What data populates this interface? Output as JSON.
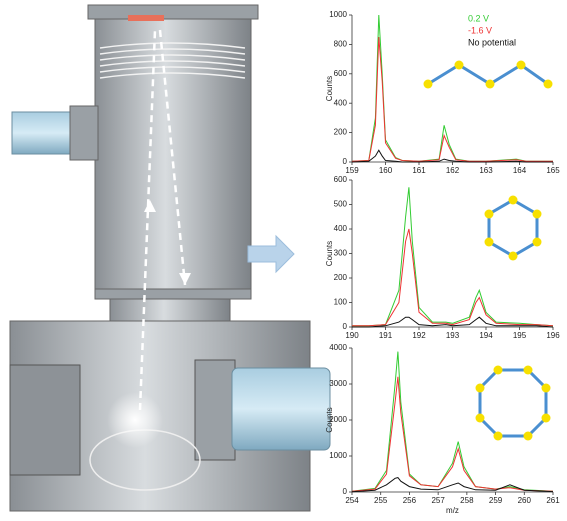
{
  "chart_data": [
    {
      "type": "line",
      "y_label": "Counts",
      "x": [
        159,
        159.5,
        159.7,
        159.8,
        159.9,
        160.0,
        160.3,
        160.5,
        161,
        161.6,
        161.75,
        161.9,
        162.1,
        162.5,
        163,
        163.9,
        164.2,
        165
      ],
      "xlim": [
        159,
        165
      ],
      "xticks": [
        159,
        160,
        161,
        162,
        163,
        164,
        165
      ],
      "ylim": [
        0,
        1000
      ],
      "yticks": [
        0,
        200,
        400,
        600,
        800,
        1000
      ],
      "series": [
        {
          "name": "0.2 V",
          "color": "#33cc33",
          "values": [
            5,
            10,
            300,
            1000,
            600,
            150,
            30,
            10,
            5,
            20,
            250,
            120,
            20,
            5,
            5,
            20,
            5,
            5
          ]
        },
        {
          "name": "-1.6 V",
          "color": "#ee3333",
          "values": [
            5,
            10,
            250,
            850,
            550,
            130,
            25,
            10,
            5,
            15,
            180,
            100,
            15,
            5,
            5,
            15,
            5,
            5
          ]
        },
        {
          "name": "No potential",
          "color": "#111111",
          "values": [
            0,
            5,
            40,
            80,
            40,
            10,
            5,
            0,
            0,
            5,
            20,
            10,
            5,
            0,
            0,
            5,
            0,
            0
          ]
        }
      ]
    },
    {
      "type": "line",
      "y_label": "Counts",
      "x": [
        190,
        190.5,
        191,
        191.4,
        191.6,
        191.7,
        191.8,
        192,
        192.4,
        192.8,
        193,
        193.5,
        193.7,
        193.8,
        194,
        194.3,
        195,
        195.5,
        196
      ],
      "xlim": [
        190,
        196
      ],
      "xticks": [
        190,
        191,
        192,
        193,
        194,
        195,
        196
      ],
      "ylim": [
        0,
        600
      ],
      "yticks": [
        0,
        100,
        200,
        300,
        400,
        500,
        600
      ],
      "series": [
        {
          "color": "#33cc33",
          "values": [
            5,
            5,
            10,
            150,
            450,
            570,
            350,
            80,
            20,
            20,
            15,
            40,
            120,
            150,
            60,
            20,
            15,
            10,
            5
          ]
        },
        {
          "color": "#ee3333",
          "values": [
            5,
            5,
            10,
            100,
            350,
            400,
            300,
            60,
            15,
            15,
            10,
            30,
            100,
            120,
            50,
            15,
            10,
            10,
            5
          ]
        },
        {
          "color": "#111111",
          "values": [
            0,
            0,
            5,
            20,
            40,
            40,
            30,
            10,
            5,
            10,
            5,
            10,
            30,
            40,
            15,
            5,
            5,
            5,
            0
          ]
        }
      ]
    },
    {
      "type": "line",
      "y_label": "Counts",
      "x_label": "m/z",
      "x": [
        254,
        254.8,
        255.2,
        255.5,
        255.6,
        255.7,
        256,
        256.4,
        257,
        257.5,
        257.7,
        257.9,
        258.3,
        259,
        259.5,
        260,
        261
      ],
      "xlim": [
        254,
        261
      ],
      "xticks": [
        254,
        255,
        256,
        257,
        258,
        259,
        260,
        261
      ],
      "ylim": [
        0,
        4000
      ],
      "yticks": [
        0,
        1000,
        2000,
        3000,
        4000
      ],
      "series": [
        {
          "color": "#33cc33",
          "values": [
            20,
            100,
            600,
            3000,
            3900,
            2500,
            500,
            200,
            150,
            800,
            1400,
            700,
            150,
            80,
            150,
            60,
            20
          ]
        },
        {
          "color": "#ee3333",
          "values": [
            20,
            80,
            500,
            2500,
            3200,
            2200,
            450,
            200,
            150,
            700,
            1200,
            600,
            150,
            80,
            120,
            50,
            20
          ]
        },
        {
          "color": "#111111",
          "values": [
            5,
            50,
            200,
            380,
            400,
            300,
            150,
            80,
            60,
            200,
            250,
            150,
            60,
            50,
            200,
            50,
            10
          ]
        }
      ]
    }
  ]
}
